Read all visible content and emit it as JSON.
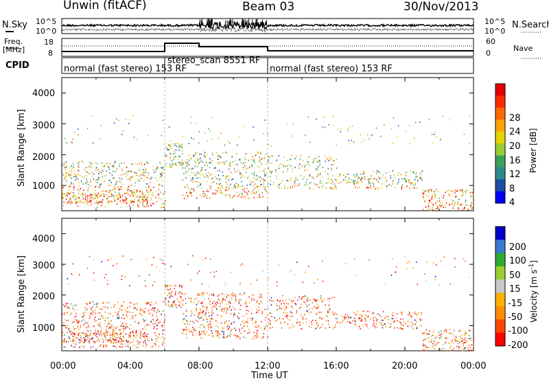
{
  "header": {
    "station": "Unwin (fitACF)",
    "beam": "Beam 03",
    "date": "30/Nov/2013"
  },
  "noise_panel": {
    "left_label": "N.Sky",
    "right_label": "N.Search",
    "left_ticks": [
      "10^5",
      "10^0"
    ],
    "right_ticks": [
      "10^5",
      "10^0"
    ]
  },
  "freq_panel": {
    "left_label_1": "Freq.",
    "left_label_2": "[MHz]",
    "right_label": "Nave",
    "left_ticks": [
      "18",
      "8"
    ],
    "right_ticks": [
      "60",
      "0"
    ]
  },
  "cpid_panel": {
    "label": "CPID",
    "segments": [
      {
        "text": "normal (fast stereo) 153 RF",
        "start_h": 0,
        "end_h": 6
      },
      {
        "text": "stereo_scan 8551 RF",
        "start_h": 6,
        "end_h": 12
      },
      {
        "text": "normal (fast stereo) 153 RF",
        "start_h": 12,
        "end_h": 24
      }
    ]
  },
  "power_panel": {
    "ylabel": "Slant Range [km]",
    "y_ticks": [
      "4000",
      "3000",
      "2000",
      "1000"
    ],
    "colorbar_label": "Power [dB]",
    "colorbar_ticks": [
      "28",
      "24",
      "20",
      "16",
      "12",
      "8",
      "4"
    ]
  },
  "velocity_panel": {
    "ylabel": "Slant Range [km]",
    "y_ticks": [
      "4000",
      "3000",
      "2000",
      "1000"
    ],
    "colorbar_label": "Velocity [m s",
    "colorbar_label_sup": "-1",
    "colorbar_label_end": "]",
    "colorbar_ticks": [
      "200",
      "100",
      "50",
      "15",
      "-15",
      "-50",
      "-100",
      "-200"
    ]
  },
  "x_axis": {
    "label": "Time UT",
    "ticks": [
      "00:00",
      "04:00",
      "08:00",
      "12:00",
      "16:00",
      "20:00",
      "00:00"
    ]
  },
  "chart_data": {
    "type": "heatmap",
    "x_range_hours": [
      0,
      24
    ],
    "y_range_km": [
      180,
      4500
    ],
    "power_scale_db": [
      0,
      30
    ],
    "velocity_scale_ms": [
      -250,
      250
    ],
    "mode_change_hours": [
      6,
      12
    ],
    "power_colors": [
      "#0000ff",
      "#1f4fa0",
      "#2e8b8b",
      "#3aa05a",
      "#9acd32",
      "#e6d200",
      "#ffa500",
      "#ff6a00",
      "#ff2a00",
      "#e00000"
    ],
    "velocity_colors": [
      "#ff0000",
      "#ff4500",
      "#ff8c00",
      "#ffb000",
      "#c8c8c8",
      "#9acd32",
      "#2eaa2e",
      "#3c78d0",
      "#0000c8"
    ]
  }
}
